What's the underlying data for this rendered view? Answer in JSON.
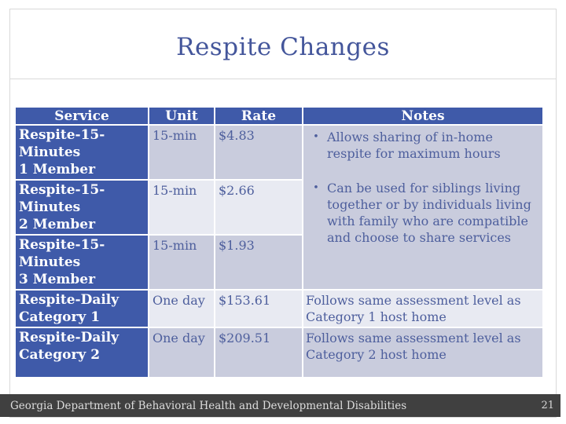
{
  "slide": {
    "title": "Respite Changes",
    "footer_text": "Georgia Department of Behavioral Health and Developmental Disabilities",
    "page_number": "21"
  },
  "table": {
    "headers": {
      "service": "Service",
      "unit": "Unit",
      "rate": "Rate",
      "notes": "Notes"
    },
    "rows": [
      {
        "service": "Respite-15-\nMinutes\n1 Member",
        "unit": "15-min",
        "rate": "$4.83"
      },
      {
        "service": "Respite-15-\nMinutes\n2 Member",
        "unit": "15-min",
        "rate": "$2.66"
      },
      {
        "service": "Respite-15-\nMinutes\n3 Member",
        "unit": "15-min",
        "rate": "$1.93"
      },
      {
        "service": "Respite-Daily\nCategory 1",
        "unit": "One day",
        "rate": "$153.61",
        "note": "Follows same assessment level as Category 1 host home"
      },
      {
        "service": "Respite-Daily\nCategory 2",
        "unit": "One day",
        "rate": "$209.51",
        "note": "Follows same assessment level as Category 2 host home"
      }
    ],
    "shared_notes": {
      "bullet": "•",
      "items": [
        "Allows sharing of in-home respite for maximum hours",
        "Can be used for siblings living together or by individuals living with family who are compatible and choose to share services"
      ]
    }
  },
  "colors": {
    "header_blue": "#3f5aa9",
    "band_dark": "#c9ccdd",
    "band_light": "#e8eaf2",
    "body_text": "#4e5f9d",
    "title_text": "#44569b",
    "footer_bg": "#404040",
    "footer_text": "#dcdcdc",
    "border_gray": "#d9d9d9"
  }
}
